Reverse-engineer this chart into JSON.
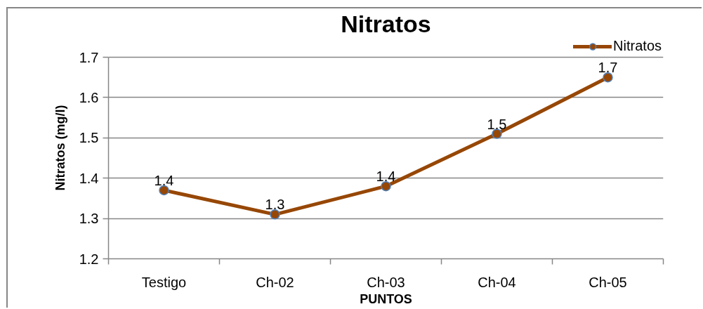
{
  "chart_data": {
    "type": "line",
    "title": "Nitratos",
    "xlabel": "PUNTOS",
    "ylabel": "Nitratos (mg/l)",
    "categories": [
      "Testigo",
      "Ch-02",
      "Ch-03",
      "Ch-04",
      "Ch-05"
    ],
    "series": [
      {
        "name": "Nitratos",
        "color": "#974706",
        "values": [
          1.37,
          1.31,
          1.38,
          1.51,
          1.65
        ],
        "value_labels": [
          "1.4",
          "1.3",
          "1.4",
          "1.5",
          "1.7"
        ]
      }
    ],
    "ylim": [
      1.2,
      1.7
    ],
    "yticks": [
      1.2,
      1.3,
      1.4,
      1.5,
      1.6,
      1.7
    ],
    "grid": "y",
    "legend": "top right",
    "marker": "circle",
    "line_style": "solid"
  }
}
